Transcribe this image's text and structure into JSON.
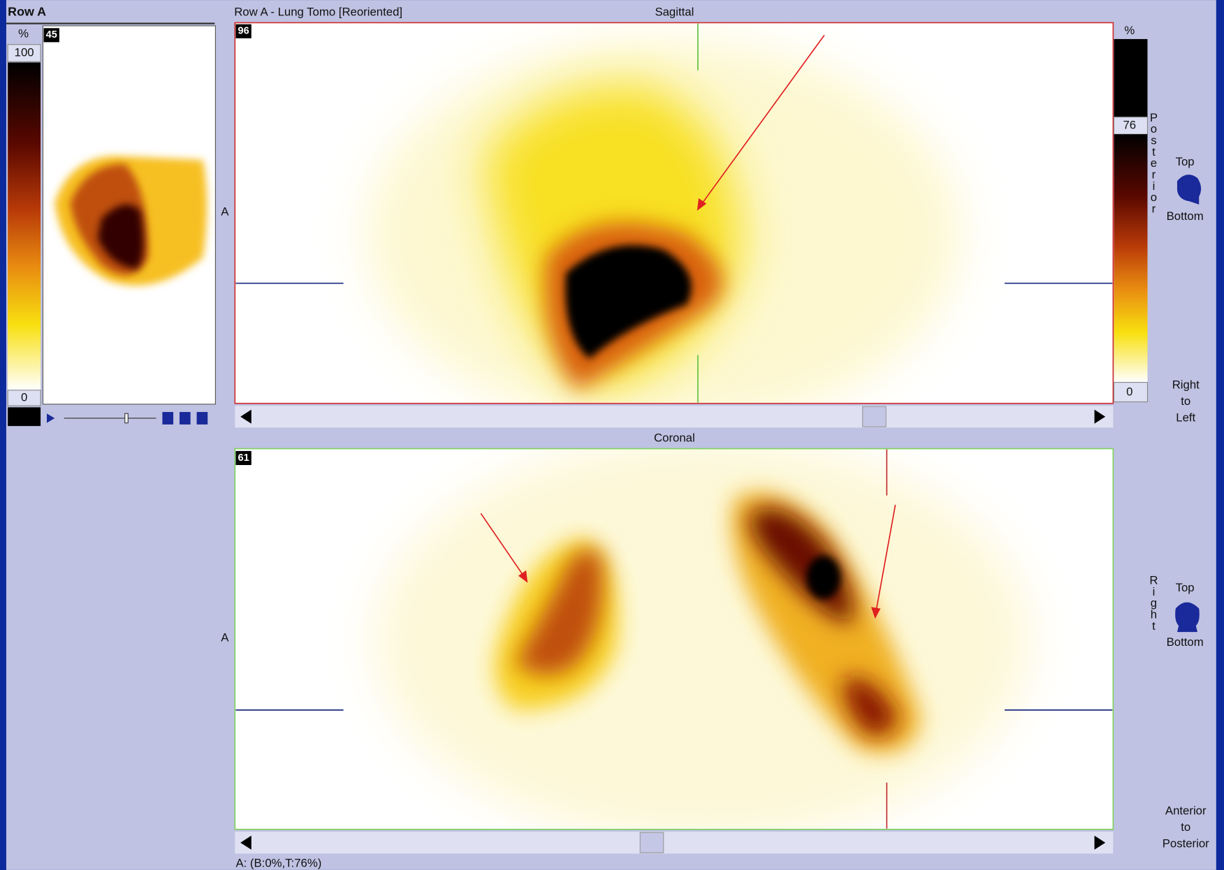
{
  "left_panel": {
    "title": "Row A",
    "unit": "%",
    "slice": "45",
    "max": "100",
    "min": "0"
  },
  "viewer": {
    "title": "Row A - Lung Tomo [Reoriented]",
    "status": "A: (B:0%,T:76%)"
  },
  "sagittal": {
    "title": "Sagittal",
    "slice": "96",
    "side_label": "A",
    "scale": {
      "unit": "%",
      "top": "76",
      "bottom": "0"
    },
    "vertical_label": "Posterior",
    "orientation": {
      "top": "Top",
      "bottom": "Bottom",
      "direction": [
        "Right",
        "to",
        "Left"
      ]
    }
  },
  "coronal": {
    "title": "Coronal",
    "slice": "61",
    "side_label": "A",
    "vertical_label": "Right",
    "orientation": {
      "top": "Top",
      "bottom": "Bottom",
      "direction": [
        "Anterior",
        "to",
        "Posterior"
      ]
    }
  }
}
